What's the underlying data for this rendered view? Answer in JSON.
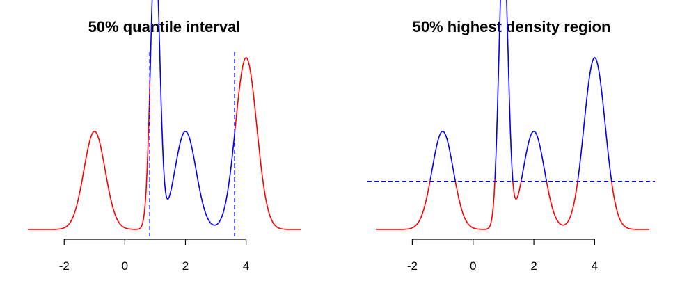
{
  "chart_data": [
    {
      "type": "line",
      "title": "50% quantile interval",
      "xlabel": "",
      "ylabel": "",
      "xlim": [
        -3.2,
        5.8
      ],
      "ylim": [
        0,
        0.42
      ],
      "xticks": [
        -2,
        0,
        2,
        4
      ],
      "xtick_labels": [
        "-2",
        "0",
        "2",
        "4"
      ],
      "grid": false,
      "legend": "none",
      "density": {
        "mixture_components": [
          {
            "mean": -1,
            "sd": 0.35,
            "weight": 0.2
          },
          {
            "mean": 1,
            "sd": 0.15,
            "weight": 0.25
          },
          {
            "mean": 2,
            "sd": 0.35,
            "weight": 0.2
          },
          {
            "mean": 4,
            "sd": 0.35,
            "weight": 0.35
          }
        ],
        "x_range": [
          -3.2,
          5.8
        ]
      },
      "interval": {
        "kind": "quantile",
        "lower": 0.82,
        "upper": 3.62
      },
      "colors": {
        "inside": "#0000ff",
        "outside": "#ff0000",
        "reference": "#0000ff"
      }
    },
    {
      "type": "line",
      "title": "50% highest density region",
      "xlabel": "",
      "ylabel": "",
      "xlim": [
        -3.2,
        5.8
      ],
      "ylim": [
        0,
        0.42
      ],
      "xticks": [
        -2,
        0,
        2,
        4
      ],
      "xtick_labels": [
        "-2",
        "0",
        "2",
        "4"
      ],
      "grid": false,
      "legend": "none",
      "density": {
        "mixture_components": [
          {
            "mean": -1,
            "sd": 0.35,
            "weight": 0.2
          },
          {
            "mean": 1,
            "sd": 0.15,
            "weight": 0.25
          },
          {
            "mean": 2,
            "sd": 0.35,
            "weight": 0.2
          },
          {
            "mean": 4,
            "sd": 0.35,
            "weight": 0.35
          }
        ],
        "x_range": [
          -3.2,
          5.8
        ]
      },
      "interval": {
        "kind": "hdr",
        "threshold": 0.112
      },
      "colors": {
        "inside": "#0000ff",
        "outside": "#ff0000",
        "reference": "#0000ff"
      }
    }
  ]
}
